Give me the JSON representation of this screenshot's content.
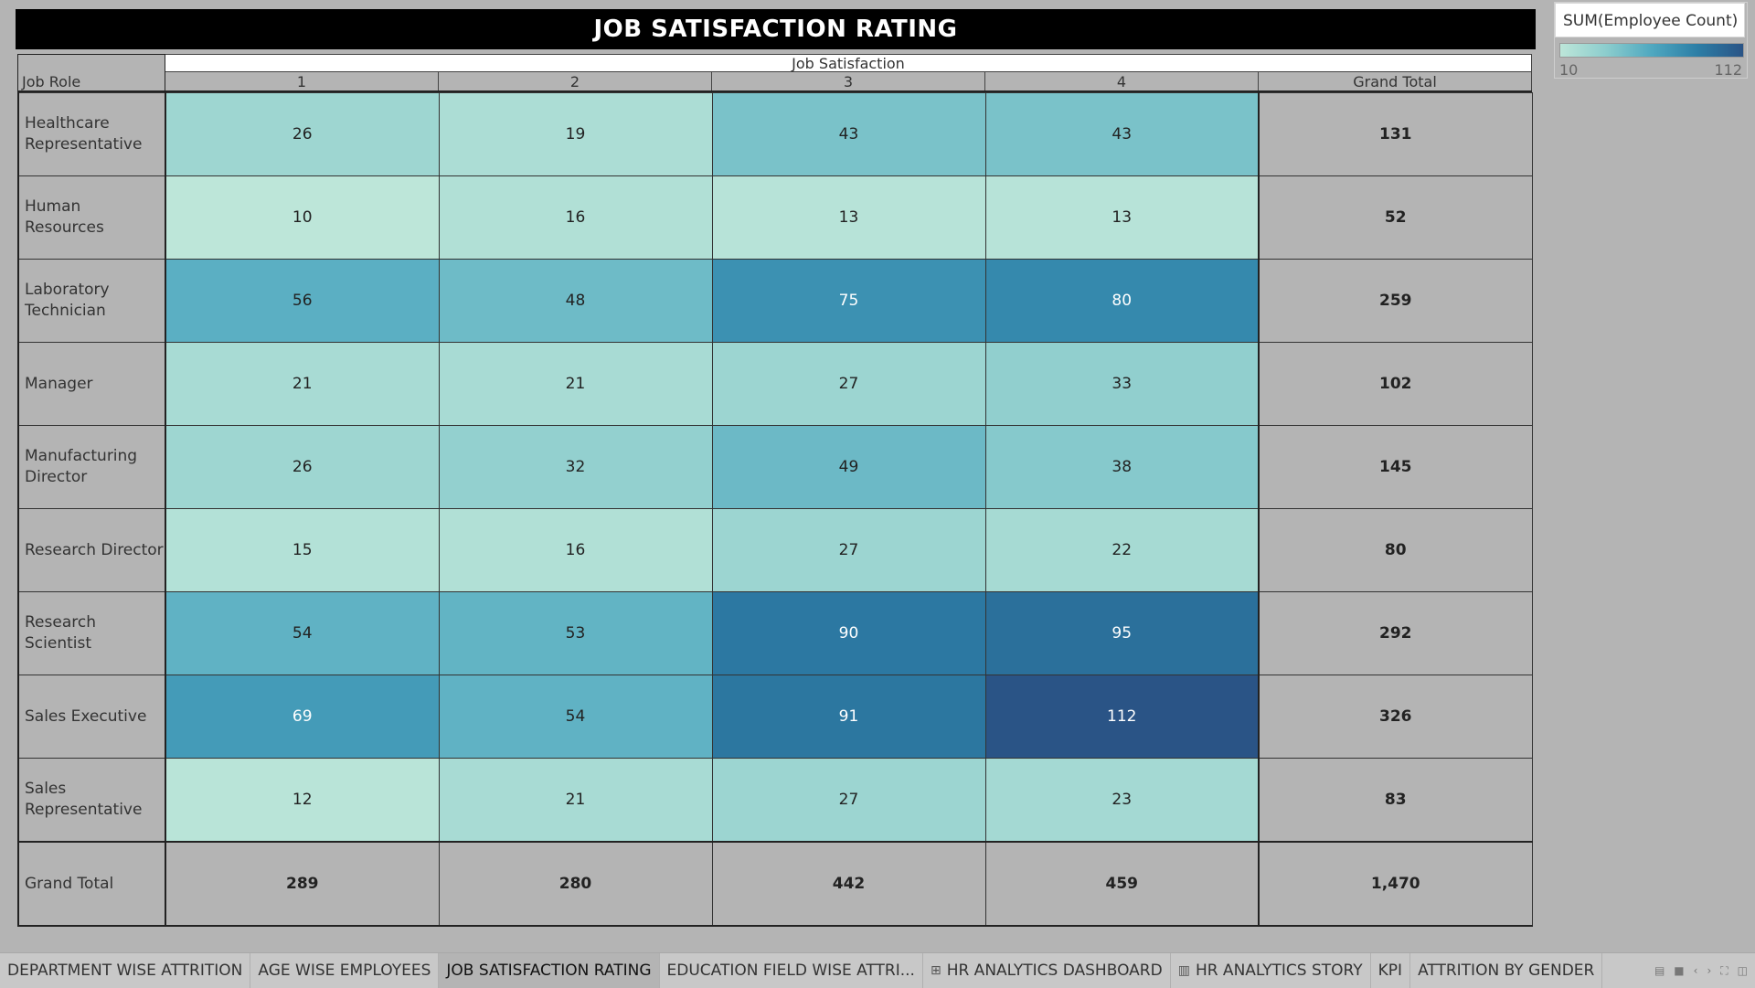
{
  "title": "JOB SATISFACTION RATING",
  "legend": {
    "title": "SUM(Employee Count)",
    "min": "10",
    "max": "112"
  },
  "table": {
    "row_header": "Job Role",
    "column_group": "Job Satisfaction",
    "columns": [
      "1",
      "2",
      "3",
      "4",
      "Grand Total"
    ],
    "rows": [
      {
        "role": "Healthcare Representative",
        "values": [
          "26",
          "19",
          "43",
          "43"
        ],
        "total": "131"
      },
      {
        "role": "Human Resources",
        "values": [
          "10",
          "16",
          "13",
          "13"
        ],
        "total": "52"
      },
      {
        "role": "Laboratory Technician",
        "values": [
          "56",
          "48",
          "75",
          "80"
        ],
        "total": "259"
      },
      {
        "role": "Manager",
        "values": [
          "21",
          "21",
          "27",
          "33"
        ],
        "total": "102"
      },
      {
        "role": "Manufacturing Director",
        "values": [
          "26",
          "32",
          "49",
          "38"
        ],
        "total": "145"
      },
      {
        "role": "Research Director",
        "values": [
          "15",
          "16",
          "27",
          "22"
        ],
        "total": "80"
      },
      {
        "role": "Research Scientist",
        "values": [
          "54",
          "53",
          "90",
          "95"
        ],
        "total": "292"
      },
      {
        "role": "Sales Executive",
        "values": [
          "69",
          "54",
          "91",
          "112"
        ],
        "total": "326"
      },
      {
        "role": "Sales Representative",
        "values": [
          "12",
          "21",
          "27",
          "23"
        ],
        "total": "83"
      }
    ],
    "grand_total": {
      "role": "Grand Total",
      "values": [
        "289",
        "280",
        "442",
        "459"
      ],
      "total": "1,470"
    }
  },
  "colors": {
    "low": "#bde6d9",
    "mid": "#5bb0c4",
    "high": "#2a5486"
  },
  "tabs": [
    {
      "label": "DEPARTMENT WISE ATTRITION",
      "icon": "",
      "active": false
    },
    {
      "label": "AGE WISE EMPLOYEES",
      "icon": "",
      "active": false
    },
    {
      "label": "JOB SATISFACTION RATING",
      "icon": "",
      "active": true
    },
    {
      "label": "EDUCATION FIELD WISE ATTRI...",
      "icon": "",
      "active": false
    },
    {
      "label": "HR ANALYTICS DASHBOARD",
      "icon": "dashboard-icon",
      "active": false
    },
    {
      "label": "HR ANALYTICS STORY",
      "icon": "story-icon",
      "active": false
    },
    {
      "label": "KPI",
      "icon": "",
      "active": false
    },
    {
      "label": "ATTRITION BY GENDER",
      "icon": "",
      "active": false
    }
  ]
}
